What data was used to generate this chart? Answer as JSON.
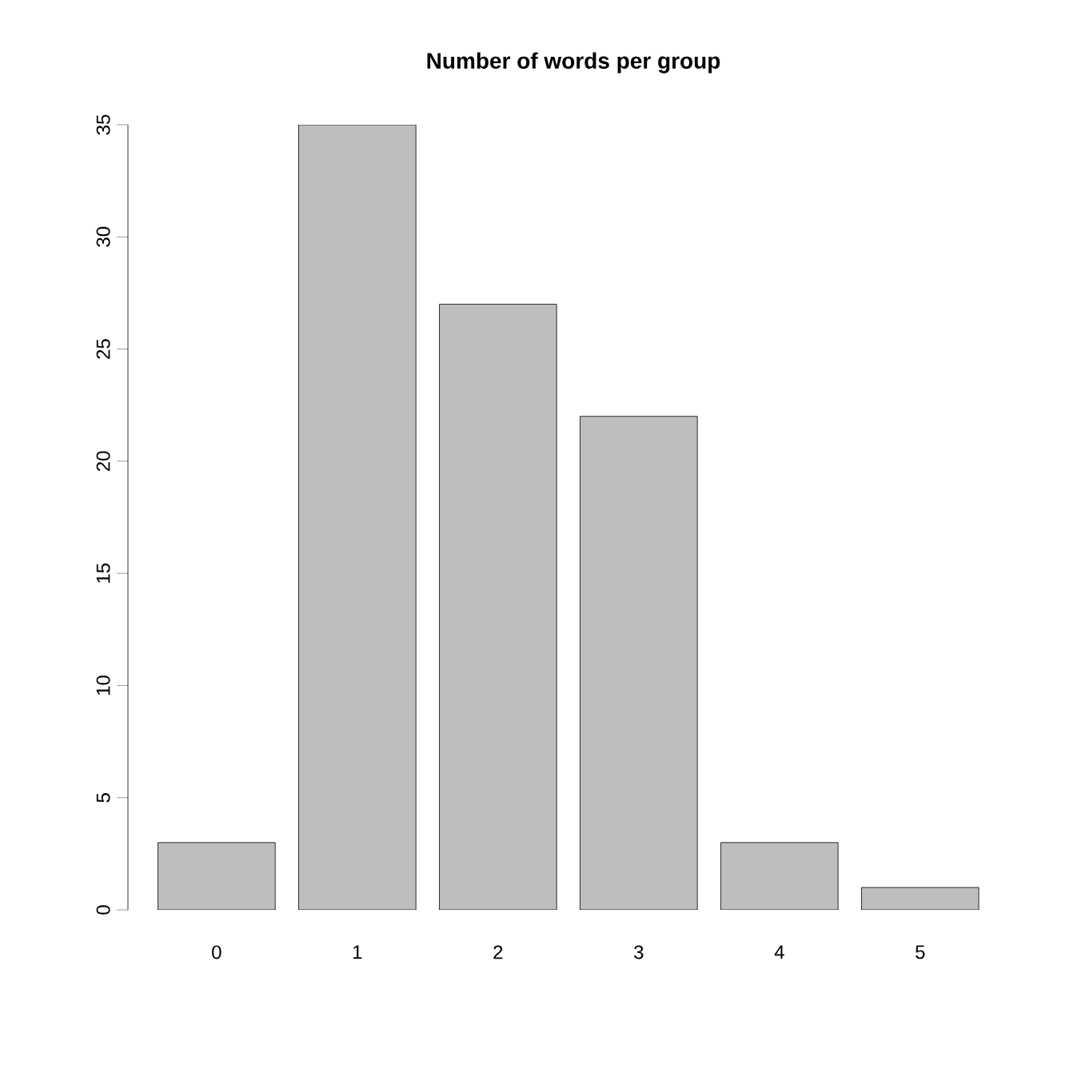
{
  "chart_data": {
    "type": "bar",
    "title": "Number of words per group",
    "categories": [
      "0",
      "1",
      "2",
      "3",
      "4",
      "5"
    ],
    "values": [
      3,
      35,
      27,
      22,
      3,
      1
    ],
    "color": "#bebebe",
    "ylim": [
      0,
      35
    ],
    "yticks": [
      0,
      5,
      10,
      15,
      20,
      25,
      30,
      35
    ],
    "grid": false
  }
}
